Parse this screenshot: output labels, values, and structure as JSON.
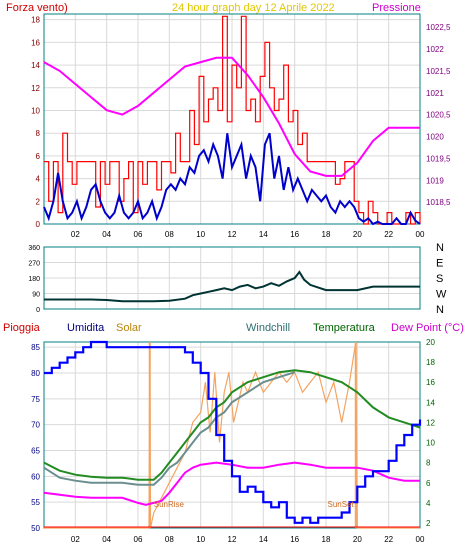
{
  "header": {
    "left_label": "Forza vento)",
    "title": "24 hour graph day   12 Aprile 2022",
    "right_label": "Pressione"
  },
  "colors": {
    "grid": "#d9d9d9",
    "frame": "#008080",
    "wind": "#ff0000",
    "gust": "#0000cc",
    "pressure": "#ff00ff",
    "direction": "#003333",
    "humidity": "#0000ff",
    "solar": "#f4a460",
    "windchill": "#6b8e8e",
    "temperature": "#228b22",
    "dewpoint": "#ff00ff",
    "rain": "#ff0000"
  },
  "chart_data": [
    {
      "id": "wind",
      "type": "line",
      "title": "24 hour graph day   12 Aprile 2022",
      "xlabel": "",
      "ylabel_left": "Forza vento)",
      "ylabel_right": "Pressione",
      "x_ticks": [
        "02",
        "04",
        "06",
        "08",
        "10",
        "12",
        "14",
        "16",
        "18",
        "20",
        "22",
        "00"
      ],
      "ylim_left": [
        0,
        18.5
      ],
      "y_ticks_left": [
        "0",
        "2",
        "4",
        "6",
        "8",
        "10",
        "12",
        "14",
        "16",
        "18"
      ],
      "ylim_right": [
        1018,
        1022.8
      ],
      "y_ticks_right": [
        "1018,5",
        "1019",
        "1019,5",
        "1020",
        "1020,5",
        "1021",
        "1021,5",
        "1022",
        "1022,5"
      ],
      "grid": true,
      "series": [
        {
          "color": "wind",
          "axis": "left",
          "x": [
            0,
            0.3,
            0.6,
            0.9,
            1.2,
            1.5,
            1.8,
            2.1,
            2.4,
            2.7,
            3,
            3.3,
            3.6,
            3.9,
            4.2,
            4.5,
            4.8,
            5.1,
            5.4,
            5.7,
            6,
            6.3,
            6.6,
            6.9,
            7.2,
            7.5,
            7.8,
            8.1,
            8.4,
            8.7,
            9,
            9.3,
            9.6,
            9.9,
            10.2,
            10.5,
            10.8,
            11.1,
            11.4,
            11.7,
            12,
            12.3,
            12.6,
            12.9,
            13.2,
            13.5,
            13.8,
            14.1,
            14.4,
            14.7,
            15,
            15.3,
            15.6,
            15.9,
            16.2,
            16.5,
            16.8,
            17.1,
            17.4,
            17.7,
            18,
            18.3,
            18.6,
            18.9,
            19.2,
            19.5,
            19.8,
            20.1,
            20.4,
            20.7,
            21,
            21.3,
            21.6,
            21.9,
            22.2,
            22.5,
            22.8,
            23.1,
            23.4,
            23.7,
            24
          ],
          "y": [
            5.5,
            2,
            5.5,
            1,
            8,
            5.5,
            3.5,
            5.5,
            5.5,
            5.5,
            5.5,
            1.5,
            5.5,
            3.5,
            5.5,
            5.5,
            2,
            4,
            5.5,
            1,
            5.5,
            3.5,
            5.5,
            5.5,
            3,
            5.5,
            5.5,
            4.5,
            8,
            5.5,
            5.5,
            10,
            7,
            13,
            9,
            11,
            12,
            10,
            18.3,
            9,
            14,
            12,
            18.3,
            10,
            11,
            9,
            13,
            16,
            12,
            10,
            11,
            14,
            9,
            10,
            7,
            8,
            5.5,
            5.5,
            5.5,
            5.5,
            5.5,
            5.5,
            3.5,
            4,
            5.5,
            5.5,
            2,
            1,
            0,
            2,
            1,
            0,
            0,
            1,
            0,
            0,
            0,
            1,
            0,
            1,
            0
          ]
        },
        {
          "color": "gust",
          "axis": "left",
          "x": [
            0,
            0.3,
            0.6,
            0.9,
            1.2,
            1.5,
            1.8,
            2.1,
            2.4,
            2.7,
            3,
            3.3,
            3.6,
            3.9,
            4.2,
            4.5,
            4.8,
            5.1,
            5.4,
            5.7,
            6,
            6.3,
            6.6,
            6.9,
            7.2,
            7.5,
            7.8,
            8.1,
            8.4,
            8.7,
            9,
            9.3,
            9.6,
            9.9,
            10.2,
            10.5,
            10.8,
            11.1,
            11.4,
            11.7,
            12,
            12.3,
            12.6,
            12.9,
            13.2,
            13.5,
            13.8,
            14.1,
            14.4,
            14.7,
            15,
            15.3,
            15.6,
            15.9,
            16.2,
            16.5,
            16.8,
            17.1,
            17.4,
            17.7,
            18,
            18.3,
            18.6,
            18.9,
            19.2,
            19.5,
            19.8,
            20.1,
            20.4,
            20.7,
            21,
            21.3,
            21.6,
            21.9,
            22.2,
            22.5,
            22.8,
            23.1,
            23.4,
            23.7,
            24
          ],
          "y": [
            1.5,
            0.5,
            2,
            4.5,
            2,
            0.5,
            1,
            2,
            0.5,
            1.5,
            3,
            3.5,
            2,
            1,
            0.5,
            1,
            2.5,
            1,
            0.5,
            1,
            2,
            0.5,
            1,
            2,
            0.5,
            1.5,
            3,
            3.5,
            3,
            4,
            3.5,
            5,
            4.5,
            6,
            6.5,
            5.5,
            7,
            6,
            4,
            8,
            5,
            6,
            7,
            4,
            6,
            5,
            2,
            7,
            8,
            4,
            6,
            3,
            5,
            3,
            4,
            3,
            2,
            3,
            2.5,
            2,
            2.5,
            1.5,
            1,
            2,
            1.5,
            2,
            1.5,
            0.5,
            0.2,
            0.5,
            0,
            0.2,
            0,
            0,
            0,
            0.5,
            0,
            0,
            1,
            0.3,
            0
          ]
        },
        {
          "color": "pressure",
          "axis": "right",
          "x": [
            0,
            1,
            2,
            3,
            4,
            5,
            6,
            7,
            8,
            9,
            10,
            11,
            12,
            13,
            14,
            15,
            16,
            17,
            18,
            19,
            20,
            21,
            22,
            23,
            24
          ],
          "y": [
            1021.7,
            1021.5,
            1021.2,
            1020.9,
            1020.6,
            1020.5,
            1020.7,
            1021,
            1021.3,
            1021.6,
            1021.7,
            1021.8,
            1021.8,
            1021.4,
            1020.9,
            1020.3,
            1019.6,
            1019.2,
            1019.1,
            1019.1,
            1019.4,
            1019.9,
            1020.2,
            1020.2,
            1020.2
          ]
        }
      ]
    },
    {
      "id": "direction",
      "type": "line",
      "x_ticks": [],
      "ylim": [
        0,
        360
      ],
      "y_ticks": [
        "0",
        "90",
        "180",
        "270",
        "360"
      ],
      "y_ticks_right": [
        "N",
        "W",
        "S",
        "E",
        "N"
      ],
      "grid": true,
      "series": [
        {
          "color": "direction",
          "x": [
            0,
            1,
            2,
            3,
            4,
            5,
            6,
            7,
            8,
            9,
            9.5,
            10,
            10.5,
            11,
            11.5,
            12,
            12.5,
            13,
            13.5,
            14,
            14.5,
            15,
            15.5,
            16,
            16.3,
            16.6,
            17,
            18,
            19,
            20,
            21,
            22,
            23,
            24
          ],
          "y": [
            55,
            55,
            55,
            55,
            52,
            45,
            45,
            45,
            48,
            60,
            80,
            90,
            100,
            110,
            120,
            110,
            130,
            140,
            120,
            130,
            150,
            135,
            160,
            180,
            215,
            170,
            140,
            110,
            110,
            110,
            130,
            130,
            130,
            130
          ]
        }
      ]
    },
    {
      "id": "weather",
      "type": "line",
      "x_ticks": [
        "02",
        "04",
        "06",
        "08",
        "10",
        "12",
        "14",
        "16",
        "18",
        "20",
        "22",
        "00"
      ],
      "labels": {
        "pioggia": "Pioggia",
        "umidita": "Umidita",
        "solar": "Solar",
        "windchill": "Windchill",
        "temperatura": "Temperatura",
        "dewpoint": "Dew Point (°C)",
        "sunrise": "SunRise",
        "sunset": "SunSet"
      },
      "ylim_left": [
        50,
        86
      ],
      "y_ticks_left": [
        "50",
        "55",
        "60",
        "65",
        "70",
        "75",
        "80",
        "85"
      ],
      "ylim_right": [
        1.5,
        20
      ],
      "y_ticks_right": [
        "2",
        "4",
        "6",
        "8",
        "10",
        "12",
        "14",
        "16",
        "18",
        "20"
      ],
      "sunrise_x": 6.75,
      "sunset_x": 19.9,
      "grid": true,
      "series": [
        {
          "color": "humidity",
          "axis": "left",
          "x": [
            0,
            0.5,
            1,
            1.5,
            2,
            2.5,
            3,
            4,
            5,
            6,
            7,
            8,
            8.5,
            9,
            9.5,
            10,
            10.5,
            11,
            11.5,
            12,
            12.5,
            13,
            13.5,
            14,
            14.5,
            15,
            15.5,
            16,
            16.5,
            17,
            17.5,
            18,
            18.5,
            19,
            19.5,
            20,
            20.5,
            21,
            21.5,
            22,
            22.5,
            23,
            23.5,
            24
          ],
          "y": [
            80,
            81,
            82,
            83,
            84,
            85,
            86,
            85,
            85,
            85,
            85,
            85,
            85,
            84,
            82,
            80,
            75,
            68,
            63,
            60,
            57,
            58,
            57,
            55,
            54,
            55,
            52,
            51,
            52,
            51,
            52,
            52,
            52,
            53,
            55,
            58,
            60,
            61,
            61,
            63,
            66,
            68,
            70,
            71
          ]
        },
        {
          "color": "solar",
          "axis": "right",
          "x": [
            0,
            6.7,
            6.75,
            6.8,
            7,
            8,
            9,
            9.5,
            10,
            10.3,
            10.6,
            10.9,
            11.2,
            11.5,
            11.8,
            12.1,
            12.4,
            12.7,
            13,
            13.5,
            14,
            14.5,
            15,
            15.5,
            16,
            16.5,
            17,
            17.5,
            18,
            18.5,
            19,
            19.5,
            19.85,
            19.9,
            20,
            24
          ],
          "y": [
            1.5,
            1.5,
            19.5,
            1.5,
            3,
            6,
            9,
            12,
            13,
            16,
            11,
            17,
            10,
            15,
            17,
            12,
            14,
            16,
            15,
            17,
            15,
            16,
            17,
            16,
            17,
            15,
            16,
            17,
            14,
            16,
            12,
            16,
            19.5,
            20,
            1.5,
            1.5
          ]
        },
        {
          "color": "windchill",
          "axis": "right",
          "x": [
            0,
            1,
            2,
            3,
            4,
            5,
            6,
            7,
            7.5,
            8,
            8.5,
            9,
            9.5,
            10,
            10.5,
            11,
            11.5,
            12,
            13,
            14,
            15,
            16
          ],
          "y": [
            7.5,
            6.5,
            6.2,
            6,
            6,
            6,
            5.8,
            5.8,
            6.5,
            7.5,
            8,
            9,
            10,
            11,
            11.5,
            12.5,
            13,
            14,
            15,
            16,
            16.5,
            17
          ]
        },
        {
          "color": "temperature",
          "axis": "right",
          "x": [
            0,
            1,
            2,
            3,
            4,
            5,
            6,
            7,
            7.5,
            8,
            8.5,
            9,
            9.5,
            10,
            10.5,
            11,
            11.5,
            12,
            13,
            14,
            15,
            16,
            17,
            18,
            19,
            19.5,
            20,
            21,
            22,
            23,
            24
          ],
          "y": [
            8,
            7.2,
            6.8,
            6.6,
            6.5,
            6.5,
            6.3,
            6.3,
            7,
            8,
            9,
            10,
            11,
            12,
            12.5,
            13.5,
            14,
            15,
            16,
            16.5,
            17,
            17.2,
            17,
            16.5,
            16,
            15.5,
            15,
            13.5,
            12.5,
            12,
            11.5
          ]
        },
        {
          "color": "dewpoint",
          "axis": "right",
          "x": [
            0,
            1,
            2,
            3,
            4,
            5,
            6,
            6.5,
            7,
            7.5,
            8,
            8.5,
            9,
            9.5,
            10,
            11,
            12,
            13,
            14,
            15,
            16,
            17,
            18,
            19,
            20,
            21,
            22,
            23,
            24
          ],
          "y": [
            5,
            4.8,
            4.6,
            4.5,
            4.5,
            4.5,
            4,
            3.8,
            4,
            4.2,
            5,
            6,
            7,
            7.5,
            7.8,
            8,
            7.8,
            7.5,
            7.5,
            7.8,
            8,
            7.8,
            7.5,
            7.5,
            7.5,
            7.2,
            6.5,
            6.2,
            6.2
          ]
        }
      ]
    }
  ]
}
